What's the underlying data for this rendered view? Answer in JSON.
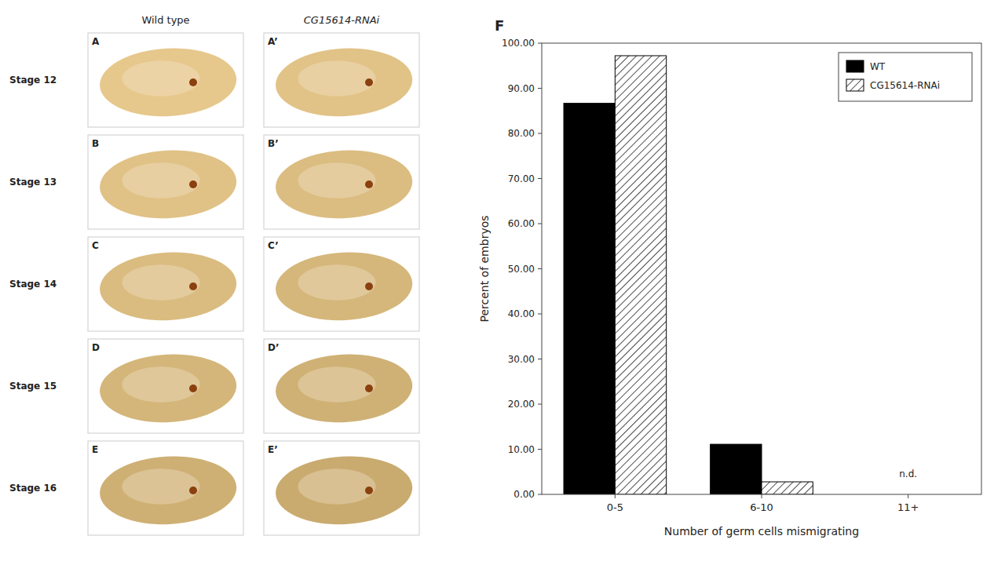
{
  "chart_data": [
    {
      "type": "bar",
      "title": "F",
      "categories": [
        "0-5",
        "6-10",
        "11+"
      ],
      "series": [
        {
          "name": "WT",
          "color": "#000000",
          "values": [
            86.67,
            11.11,
            0.0
          ]
        },
        {
          "name": "CG15614-RNAi",
          "color": "#ffffff",
          "values": [
            97.22,
            2.78,
            0.0
          ]
        }
      ],
      "x_label": "Number of germ cells mismigrating",
      "y_label": "Percent of embryos",
      "ylim": [
        0,
        100
      ],
      "yticks": [
        {
          "value": 0,
          "label": "0.00"
        },
        {
          "value": 10,
          "label": "10.00"
        },
        {
          "value": 20,
          "label": "20.00"
        },
        {
          "value": 30,
          "label": "30.00"
        },
        {
          "value": 40,
          "label": "40.00"
        },
        {
          "value": 50,
          "label": "50.00"
        },
        {
          "value": 60,
          "label": "60.00"
        },
        {
          "value": 70,
          "label": "70.00"
        },
        {
          "value": 80,
          "label": "80.00"
        },
        {
          "value": 90,
          "label": "90.00"
        },
        {
          "value": 100,
          "label": "100.00"
        }
      ],
      "annotations": [
        {
          "text": "n.d.",
          "x": "11+",
          "y": 3.5
        }
      ],
      "legend": "upper right",
      "grid": false
    },
    {
      "type": "image_grid",
      "columns": [
        "Wild type",
        "CG15614-RNAi"
      ],
      "rows": [
        "Stage 12",
        "Stage 13",
        "Stage 14",
        "Stage 15",
        "Stage 16"
      ],
      "panel_labels": [
        [
          "A",
          "B",
          "C",
          "D",
          "E"
        ],
        [
          "A’",
          "B’",
          "C’",
          "D’",
          "E’"
        ]
      ]
    }
  ]
}
